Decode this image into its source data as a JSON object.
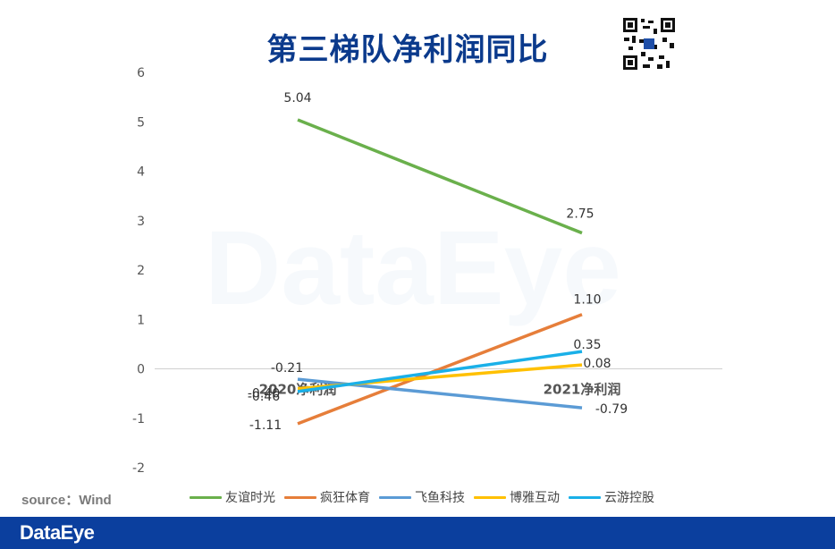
{
  "title": "第三梯队净利润同比",
  "source": "source：Wind",
  "footer_logo": "DataEye",
  "watermark": "DataEye",
  "colors": {
    "title": "#0b3a8c",
    "footer": "#0b3f9e"
  },
  "chart_data": {
    "type": "line",
    "x": [
      "2020净利润",
      "2021净利润"
    ],
    "ylim": [
      -2,
      6
    ],
    "yticks": [
      -2,
      -1,
      0,
      1,
      2,
      3,
      4,
      5,
      6
    ],
    "grid": false,
    "legend_position": "bottom",
    "series": [
      {
        "name": "友谊时光",
        "color": "#6ab04c",
        "values": [
          5.04,
          2.75
        ],
        "labels": [
          "5.04",
          "2.75"
        ]
      },
      {
        "name": "疯狂体育",
        "color": "#e67e3a",
        "values": [
          -1.11,
          1.1
        ],
        "labels": [
          "-1.11",
          "1.10"
        ]
      },
      {
        "name": "飞鱼科技",
        "color": "#5b9bd5",
        "values": [
          -0.21,
          -0.79
        ],
        "labels": [
          "-0.21",
          "-0.79"
        ]
      },
      {
        "name": "博雅互动",
        "color": "#ffc000",
        "values": [
          -0.4,
          0.08
        ],
        "labels": [
          "-0.40",
          "0.08"
        ]
      },
      {
        "name": "云游控股",
        "color": "#1ab0e8",
        "values": [
          -0.46,
          0.35
        ],
        "labels": [
          "-0.46",
          "0.35"
        ]
      }
    ]
  }
}
